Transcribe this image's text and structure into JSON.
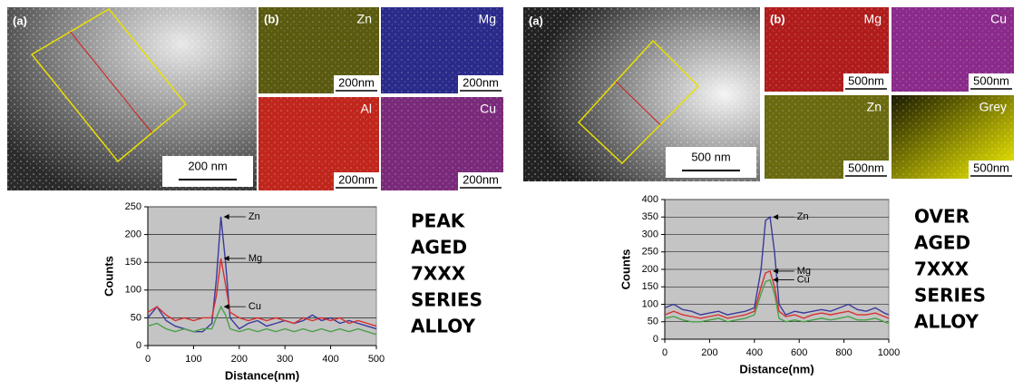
{
  "figures": [
    {
      "micrograph": {
        "label": "(a)",
        "scale_bar": "200 nm"
      },
      "maps": [
        {
          "panel_label": "(b)",
          "element": "Zn",
          "scale_bar": "200nm"
        },
        {
          "element": "Mg",
          "scale_bar": "200nm"
        },
        {
          "element": "Al",
          "scale_bar": "200nm"
        },
        {
          "element": "Cu",
          "scale_bar": "200nm"
        }
      ],
      "caption_lines": [
        "PEAK",
        "AGED",
        "7XXX",
        "SERIES",
        "ALLOY"
      ]
    },
    {
      "micrograph": {
        "label": "(a)",
        "scale_bar": "500 nm"
      },
      "maps": [
        {
          "panel_label": "(b)",
          "element": "Mg",
          "scale_bar": "500nm"
        },
        {
          "element": "Cu",
          "scale_bar": "500nm"
        },
        {
          "element": "Zn",
          "scale_bar": "500nm"
        },
        {
          "element": "Grey",
          "scale_bar": "500nm"
        }
      ],
      "caption_lines": [
        "OVER",
        "AGED",
        "7XXX",
        "SERIES",
        "ALLOY"
      ]
    }
  ],
  "chart_data": [
    {
      "type": "line",
      "x_label": "Distance(nm)",
      "y_label": "Counts",
      "xlim": [
        0,
        500
      ],
      "xticks": [
        0,
        100,
        200,
        300,
        400,
        500
      ],
      "ylim": [
        0,
        250
      ],
      "yticks": [
        0,
        50,
        100,
        150,
        200,
        250
      ],
      "grid": true,
      "x": [
        0,
        20,
        40,
        60,
        80,
        100,
        120,
        140,
        150,
        160,
        170,
        180,
        200,
        220,
        240,
        260,
        280,
        300,
        320,
        340,
        360,
        380,
        400,
        420,
        440,
        460,
        480,
        500
      ],
      "series": [
        {
          "name": "Zn",
          "color": "#3a3a9c",
          "values": [
            50,
            70,
            45,
            35,
            30,
            25,
            25,
            40,
            120,
            232,
            150,
            50,
            30,
            40,
            45,
            35,
            40,
            45,
            40,
            45,
            55,
            45,
            50,
            40,
            45,
            40,
            35,
            30
          ]
        },
        {
          "name": "Mg",
          "color": "#d83030",
          "values": [
            60,
            70,
            55,
            45,
            50,
            45,
            50,
            50,
            90,
            157,
            110,
            60,
            50,
            45,
            50,
            45,
            50,
            45,
            40,
            50,
            45,
            50,
            45,
            50,
            40,
            45,
            40,
            35
          ]
        },
        {
          "name": "Cu",
          "color": "#4aa04a",
          "values": [
            35,
            40,
            30,
            25,
            30,
            25,
            30,
            30,
            50,
            70,
            55,
            30,
            25,
            30,
            25,
            30,
            25,
            30,
            25,
            30,
            25,
            30,
            25,
            30,
            25,
            30,
            25,
            20
          ]
        }
      ]
    },
    {
      "type": "line",
      "x_label": "Distance(nm)",
      "y_label": "Counts",
      "xlim": [
        0,
        1000
      ],
      "xticks": [
        0,
        200,
        400,
        600,
        800,
        1000
      ],
      "ylim": [
        0,
        400
      ],
      "yticks": [
        0,
        50,
        100,
        150,
        200,
        250,
        300,
        350,
        400
      ],
      "grid": true,
      "x": [
        0,
        40,
        80,
        120,
        160,
        200,
        240,
        280,
        320,
        360,
        400,
        430,
        450,
        470,
        490,
        510,
        540,
        580,
        620,
        660,
        700,
        740,
        780,
        820,
        860,
        900,
        940,
        980,
        1000
      ],
      "series": [
        {
          "name": "Zn",
          "color": "#3a3a9c",
          "values": [
            90,
            100,
            85,
            80,
            70,
            75,
            80,
            70,
            75,
            80,
            90,
            200,
            340,
            350,
            250,
            100,
            70,
            80,
            75,
            80,
            85,
            80,
            90,
            100,
            85,
            80,
            90,
            75,
            70
          ]
        },
        {
          "name": "Mg",
          "color": "#d83030",
          "values": [
            70,
            80,
            70,
            65,
            60,
            65,
            70,
            60,
            65,
            70,
            80,
            150,
            190,
            195,
            150,
            80,
            65,
            70,
            60,
            70,
            75,
            70,
            75,
            80,
            70,
            70,
            75,
            65,
            60
          ]
        },
        {
          "name": "Cu",
          "color": "#4aa04a",
          "values": [
            60,
            65,
            55,
            50,
            50,
            55,
            60,
            50,
            55,
            60,
            70,
            130,
            165,
            170,
            130,
            60,
            50,
            55,
            50,
            55,
            60,
            55,
            60,
            65,
            55,
            55,
            60,
            50,
            45
          ]
        }
      ]
    }
  ]
}
